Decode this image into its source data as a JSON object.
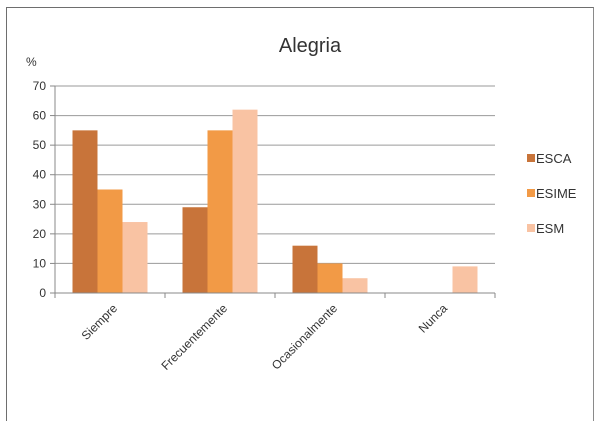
{
  "chart_data": {
    "type": "bar",
    "title": "Alegria",
    "ylabel": "%",
    "xlabel": "",
    "ylim": [
      0,
      70
    ],
    "yticks": [
      0,
      10,
      20,
      30,
      40,
      50,
      60,
      70
    ],
    "grid": true,
    "legend_position": "right",
    "categories": [
      "Siempre",
      "Frecuentemente",
      "Ocasionalmente",
      "Nunca"
    ],
    "series": [
      {
        "name": "ESCA",
        "color": "#C8743A",
        "values": [
          55,
          29,
          16,
          0
        ]
      },
      {
        "name": "ESIME",
        "color": "#F29A46",
        "values": [
          35,
          55,
          10,
          0
        ]
      },
      {
        "name": "ESM",
        "color": "#F9C3A3",
        "values": [
          24,
          62,
          5,
          9
        ]
      }
    ]
  }
}
